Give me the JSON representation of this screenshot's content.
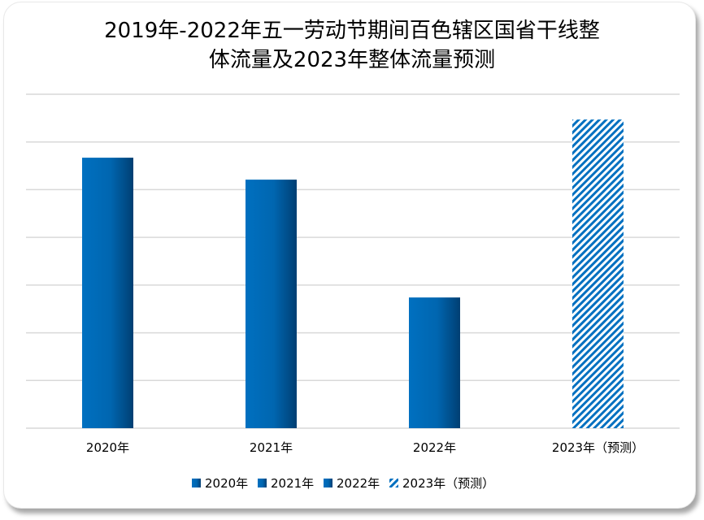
{
  "chart_data": {
    "type": "bar",
    "title_line1": "2019年-2022年五一劳动节期间百色辖区国省干线整",
    "title_line2": "体流量及2023年整体流量预测",
    "categories": [
      "2020年",
      "2021年",
      "2022年",
      "2023年（预测）"
    ],
    "values": [
      5.67,
      5.21,
      2.74,
      6.47
    ],
    "value_unit_note": "relative units (no axis labels shown)",
    "ylim": [
      0,
      7
    ],
    "grid": true,
    "legend": [
      "2020年",
      "2021年",
      "2022年",
      "2023年（预测）"
    ],
    "legend_placement": "bottom",
    "colors": {
      "bar": "#0070c0",
      "bar_dark": "#003f73",
      "grid": "#d9d9d9"
    },
    "forecast_pattern": "diagonal-stripes"
  }
}
